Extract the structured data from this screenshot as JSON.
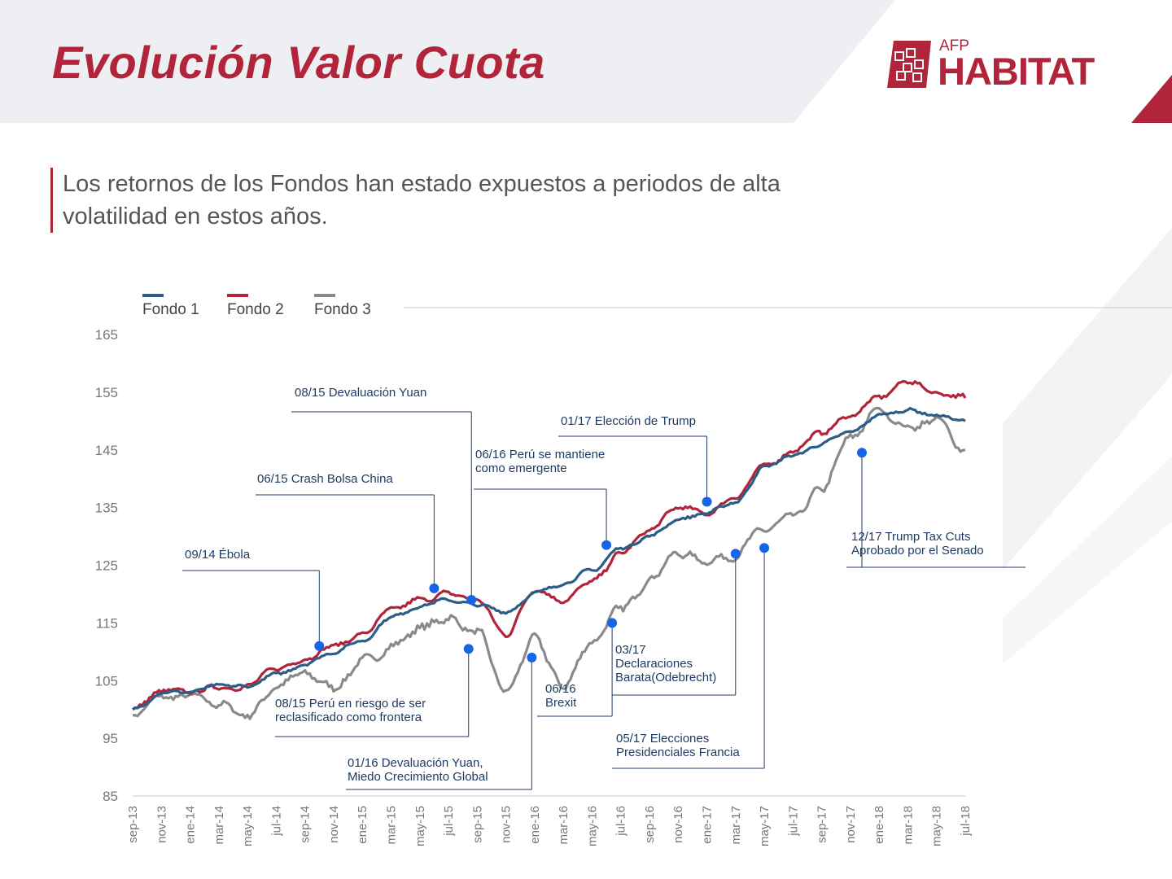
{
  "title": "Evolución Valor Cuota",
  "subtitle": "Los retornos de los Fondos han estado expuestos a periodos de alta volatilidad en estos años.",
  "logo": {
    "top": "AFP",
    "main": "HABITAT"
  },
  "colors": {
    "accent": "#b1243a",
    "fondo1": "#2b5d86",
    "fondo2": "#b1243a",
    "fondo3": "#8a8a8a",
    "annotation": "#1f3b63",
    "marker": "#1565e6"
  },
  "chart_data": {
    "type": "line",
    "ylim": [
      85,
      165
    ],
    "yticks": [
      85,
      95,
      105,
      115,
      125,
      135,
      145,
      155,
      165
    ],
    "xtick_labels": [
      "sep-13",
      "nov-13",
      "ene-14",
      "mar-14",
      "may-14",
      "jul-14",
      "sep-14",
      "nov-14",
      "ene-15",
      "mar-15",
      "may-15",
      "jul-15",
      "sep-15",
      "nov-15",
      "ene-16",
      "mar-16",
      "may-16",
      "jul-16",
      "sep-16",
      "nov-16",
      "ene-17",
      "mar-17",
      "may-17",
      "jul-17",
      "sep-17",
      "nov-17",
      "ene-18",
      "mar-18",
      "may-18",
      "jul-18"
    ],
    "legend_position": "top-left",
    "series": [
      {
        "name": "Fondo 1",
        "color": "#2b5d86",
        "values": [
          100,
          103,
          103,
          104,
          104,
          106,
          108,
          110,
          112,
          116,
          118,
          119,
          118,
          117,
          120,
          122,
          124,
          128,
          130,
          133,
          134,
          136,
          142,
          144,
          146,
          148,
          151,
          152,
          151,
          150
        ]
      },
      {
        "name": "Fondo 2",
        "color": "#b1243a",
        "values": [
          100,
          103,
          103,
          104,
          104,
          107,
          109,
          111,
          113,
          117,
          119,
          120,
          119,
          113,
          121,
          119,
          122,
          127,
          131,
          135,
          134,
          137,
          142,
          145,
          148,
          151,
          154,
          157,
          155,
          154
        ]
      },
      {
        "name": "Fondo 3",
        "color": "#8a8a8a",
        "values": [
          99,
          102,
          102,
          101,
          99,
          104,
          106,
          104,
          108,
          111,
          114,
          116,
          113,
          103,
          112,
          104,
          112,
          117,
          123,
          127,
          126,
          127,
          131,
          133,
          138,
          147,
          152,
          149,
          150,
          145
        ]
      }
    ],
    "annotations": [
      {
        "text": [
          "09/14 Ébola"
        ],
        "x": 6.5,
        "y": 111,
        "series": "Fondo 2"
      },
      {
        "text": [
          "06/15 Crash Bolsa China"
        ],
        "x": 10.5,
        "y": 121,
        "series": "Fondo 2"
      },
      {
        "text": [
          "08/15 Devaluación Yuan"
        ],
        "x": 11.8,
        "y": 119,
        "series": "Fondo 1"
      },
      {
        "text": [
          "08/15 Perú en riesgo de ser",
          "reclasificado como frontera"
        ],
        "x": 11.7,
        "y": 110.5,
        "series": "Fondo 3"
      },
      {
        "text": [
          "06/16 Perú se mantiene",
          "como emergente"
        ],
        "x": 16.5,
        "y": 128.5,
        "series": "Fondo 1"
      },
      {
        "text": [
          "01/16 Devaluación Yuan,",
          "Miedo Crecimiento Global"
        ],
        "x": 13.9,
        "y": 109,
        "series": "Fondo 3"
      },
      {
        "text": [
          "06/16",
          "Brexit"
        ],
        "x": 16.7,
        "y": 115,
        "series": "Fondo 3"
      },
      {
        "text": [
          "01/17 Elección de Trump"
        ],
        "x": 20.0,
        "y": 136,
        "series": "Fondo 1"
      },
      {
        "text": [
          "03/17",
          "Declaraciones",
          "Barata(Odebrecht)"
        ],
        "x": 21.0,
        "y": 127,
        "series": "Fondo 3"
      },
      {
        "text": [
          "05/17 Elecciones",
          "Presidenciales Francia"
        ],
        "x": 22.0,
        "y": 128,
        "series": "Fondo 3"
      },
      {
        "text": [
          "12/17 Trump Tax Cuts",
          "Aprobado por el Senado"
        ],
        "x": 25.4,
        "y": 144.5,
        "series": "Fondo 3"
      }
    ]
  }
}
